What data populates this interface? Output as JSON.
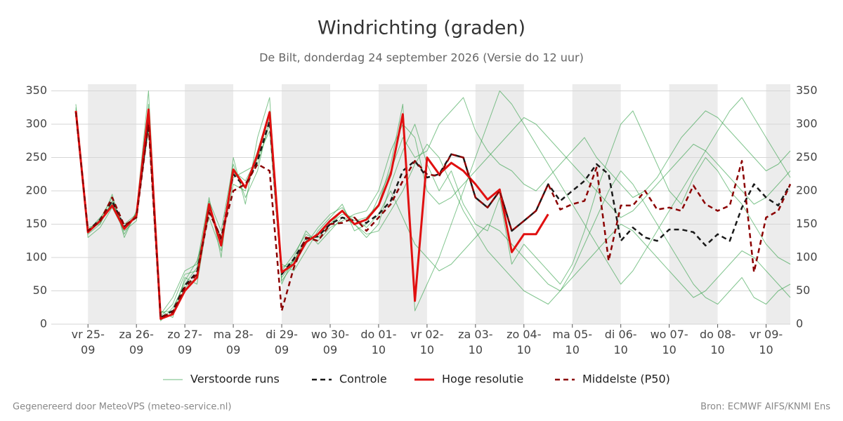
{
  "chart_data": {
    "type": "line",
    "title": "Windrichting (graden)",
    "subtitle": "De Bilt, donderdag 24 september 2026 (Versie do 12 uur)",
    "footer_left": "Gegenereerd door MeteoVPS (meteo-service.nl)",
    "footer_right": "Bron: ECMWF AIFS/KNMI Ens",
    "categories": [
      null,
      "vr 25-09",
      null,
      null,
      null,
      "za 26-09",
      null,
      null,
      null,
      "zo 27-09",
      null,
      null,
      null,
      "ma 28-09",
      null,
      null,
      null,
      "di 29-09",
      null,
      null,
      null,
      "wo 30-09",
      null,
      null,
      null,
      "do 01-10",
      null,
      null,
      null,
      "vr 02-10",
      null,
      null,
      null,
      "za 03-10",
      null,
      null,
      null,
      "zo 04-10",
      null,
      null,
      null,
      "ma 05-10",
      null,
      null,
      null,
      "di 06-10",
      null,
      null,
      null,
      "wo 07-10",
      null,
      null,
      null,
      "do 08-10",
      null,
      null,
      null,
      "vr 09-10",
      null,
      null
    ],
    "ylim": [
      0,
      360
    ],
    "yticks": [
      0,
      50,
      100,
      150,
      200,
      250,
      300,
      350
    ],
    "grid": true,
    "series": [
      {
        "name": "Verstoorde runs",
        "color": "#2e9e44",
        "members": [
          [
            330,
            135,
            150,
            195,
            130,
            170,
            350,
            15,
            40,
            80,
            90,
            190,
            100,
            250,
            180,
            280,
            340,
            60,
            100,
            140,
            120,
            140,
            160,
            150,
            130,
            150,
            210,
            260,
            300,
            240,
            200,
            230,
            180,
            150,
            140,
            190,
            90,
            120,
            100,
            80,
            60,
            90,
            140,
            200,
            250,
            300,
            320,
            280,
            240,
            200,
            180,
            220,
            250,
            230,
            200,
            180,
            150,
            120,
            100,
            90
          ],
          [
            315,
            140,
            160,
            180,
            150,
            165,
            300,
            20,
            10,
            70,
            60,
            170,
            130,
            220,
            230,
            240,
            300,
            90,
            80,
            110,
            140,
            160,
            180,
            140,
            150,
            190,
            230,
            280,
            250,
            260,
            300,
            320,
            340,
            290,
            260,
            240,
            230,
            210,
            200,
            220,
            240,
            260,
            280,
            250,
            230,
            210,
            190,
            200,
            220,
            250,
            280,
            300,
            320,
            310,
            290,
            270,
            250,
            230,
            240,
            260
          ],
          [
            325,
            130,
            145,
            175,
            140,
            155,
            310,
            5,
            25,
            60,
            85,
            175,
            125,
            210,
            200,
            260,
            320,
            70,
            95,
            125,
            135,
            150,
            165,
            160,
            145,
            165,
            200,
            160,
            120,
            100,
            80,
            90,
            110,
            130,
            150,
            140,
            120,
            100,
            80,
            60,
            50,
            70,
            90,
            110,
            130,
            150,
            140,
            120,
            100,
            80,
            60,
            40,
            50,
            70,
            90,
            110,
            100,
            80,
            60,
            40
          ],
          [
            320,
            145,
            150,
            185,
            145,
            160,
            330,
            12,
            30,
            75,
            80,
            185,
            140,
            240,
            190,
            230,
            310,
            80,
            105,
            135,
            125,
            145,
            155,
            165,
            170,
            200,
            260,
            300,
            280,
            200,
            180,
            190,
            210,
            230,
            250,
            270,
            290,
            310,
            300,
            280,
            260,
            240,
            220,
            200,
            180,
            160,
            170,
            190,
            210,
            230,
            250,
            270,
            260,
            240,
            220,
            200,
            180,
            190,
            210,
            230
          ],
          [
            318,
            138,
            158,
            190,
            135,
            168,
            290,
            18,
            20,
            65,
            95,
            160,
            110,
            230,
            215,
            250,
            290,
            65,
            90,
            120,
            145,
            165,
            175,
            150,
            135,
            140,
            170,
            200,
            240,
            270,
            250,
            210,
            170,
            140,
            110,
            90,
            70,
            50,
            40,
            30,
            50,
            80,
            120,
            160,
            200,
            230,
            210,
            180,
            150,
            120,
            90,
            60,
            40,
            30,
            50,
            70,
            40,
            30,
            50,
            60
          ],
          [
            322,
            142,
            152,
            182,
            142,
            162,
            315,
            8,
            15,
            55,
            70,
            178,
            120,
            228,
            205,
            248,
            315,
            85,
            95,
            130,
            130,
            150,
            170,
            155,
            160,
            180,
            240,
            330,
            20,
            60,
            100,
            150,
            200,
            250,
            300,
            350,
            330,
            300,
            270,
            240,
            210,
            180,
            150,
            120,
            90,
            60,
            80,
            110,
            140,
            170,
            200,
            230,
            260,
            290,
            320,
            340,
            310,
            280,
            250,
            220
          ]
        ]
      },
      {
        "name": "Controle",
        "color": "#1a1a1a",
        "dashed": true,
        "values": [
          318,
          140,
          157,
          185,
          146,
          162,
          305,
          10,
          20,
          58,
          78,
          172,
          128,
          225,
          205,
          245,
          305,
          75,
          98,
          128,
          132,
          150,
          160,
          155,
          152,
          165,
          185,
          230,
          245,
          220,
          225,
          255,
          250,
          190,
          175,
          200,
          140,
          155,
          170,
          210,
          185,
          200,
          215,
          240,
          225,
          125,
          145,
          130,
          125,
          142,
          142,
          138,
          118,
          135,
          125,
          175,
          210,
          190,
          178,
          210
        ]
      },
      {
        "name": "Hoge resolutie",
        "color": "#e01010",
        "values": [
          320,
          138,
          155,
          178,
          143,
          163,
          322,
          8,
          15,
          50,
          70,
          180,
          118,
          232,
          205,
          255,
          318,
          78,
          90,
          123,
          135,
          155,
          170,
          150,
          157,
          178,
          225,
          315,
          35,
          250,
          225,
          242,
          230,
          210,
          187,
          202,
          108,
          135,
          135,
          165,
          null,
          null,
          null,
          null,
          null,
          null,
          null,
          null,
          null,
          null,
          null,
          null,
          null,
          null,
          null,
          null,
          null,
          null,
          null,
          null
        ]
      },
      {
        "name": "Middelste (P50)",
        "color": "#8b0000",
        "dashed": true,
        "values": [
          318,
          140,
          155,
          190,
          148,
          160,
          300,
          10,
          18,
          55,
          75,
          168,
          130,
          200,
          210,
          240,
          230,
          20,
          85,
          130,
          125,
          150,
          152,
          160,
          140,
          160,
          180,
          215,
          245,
          225,
          222,
          255,
          250,
          190,
          175,
          200,
          140,
          155,
          170,
          210,
          172,
          180,
          185,
          235,
          95,
          178,
          178,
          200,
          172,
          175,
          170,
          208,
          180,
          170,
          178,
          245,
          78,
          160,
          170,
          210
        ]
      }
    ]
  }
}
